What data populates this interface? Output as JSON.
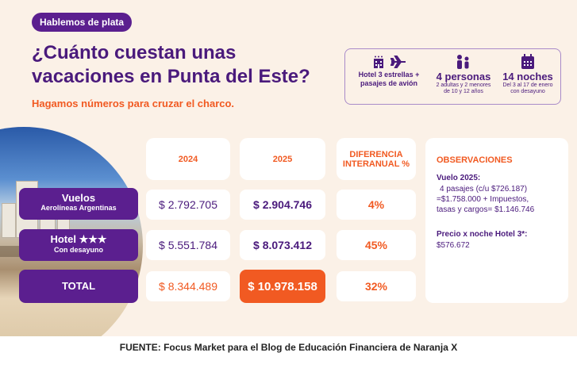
{
  "badge": "Hablemos de plata",
  "title_line1": "¿Cuánto cuestan unas",
  "title_line2": "vacaciones en Punta del Este?",
  "subtitle": "Hagamos números para cruzar el charco.",
  "info": {
    "lodging_line1": "Hotel 3 estrellas +",
    "lodging_line2": "pasajes de avión",
    "people_big": "4 personas",
    "people_line1": "2 adultas y 2 menores",
    "people_line2": "de 10 y 12 años",
    "nights_big": "14 noches",
    "nights_line1": "Del 3 al 17 de enero",
    "nights_line2": "con desayuno"
  },
  "table": {
    "col_2024": "2024",
    "col_2025": "2025",
    "col_diff_line1": "DIFERENCIA",
    "col_diff_line2": "INTERANUAL %",
    "rows": [
      {
        "label": "Vuelos",
        "sub": "Aerolíneas Argentinas",
        "v2024": "$ 2.792.705",
        "v2025": "$ 2.904.746",
        "diff": "4%"
      },
      {
        "label": "Hotel ★★★",
        "sub": "Con desayuno",
        "v2024": "$ 5.551.784",
        "v2025": "$ 8.073.412",
        "diff": "45%"
      }
    ],
    "total": {
      "label": "TOTAL",
      "v2024": "$ 8.344.489",
      "v2025": "$ 10.978.158",
      "diff": "32%"
    }
  },
  "observations": {
    "title": "OBSERVACIONES",
    "flight_title": "Vuelo 2025:",
    "flight_l1": "4 pasajes (c/u $726.187)",
    "flight_l2": "=$1.758.000 + Impuestos,",
    "flight_l3": "tasas y cargos= $1.146.746",
    "hotel_title": "Precio x noche Hotel 3*:",
    "hotel_value": "$576.672"
  },
  "footer": "FUENTE: Focus Market para el Blog de Educación Financiera de Naranja X",
  "colors": {
    "purple": "#5b1f8f",
    "orange": "#f15a22",
    "cream": "#fbf1e7"
  }
}
